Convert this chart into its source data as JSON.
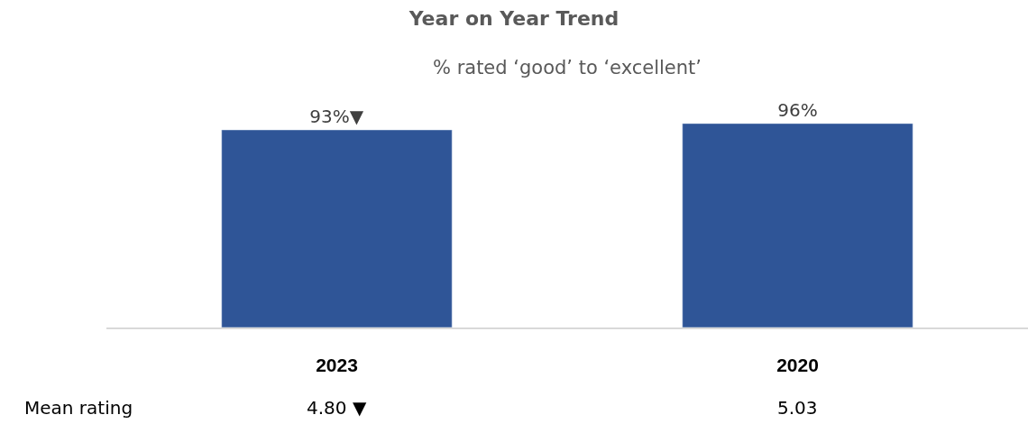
{
  "chart_data": {
    "type": "bar",
    "title": "Year on Year Trend",
    "subtitle": "% rated ‘good’ to ‘excellent’",
    "categories": [
      "2023",
      "2020"
    ],
    "values": [
      93,
      96
    ],
    "color": "#2f5597",
    "value_labels": [
      "93%▼",
      "96%"
    ],
    "tick_labels": "x",
    "annotations": [
      "Mean rating",
      "4.80 ▼",
      "5.03"
    ]
  }
}
